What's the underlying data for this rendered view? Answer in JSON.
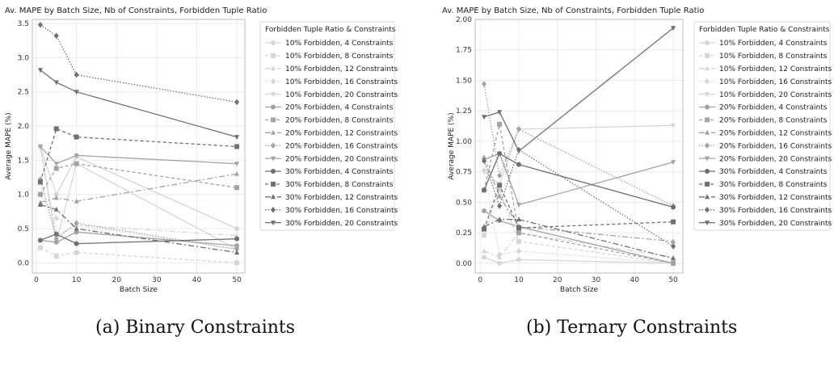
{
  "captions": {
    "a": "(a) Binary Constraints",
    "b": "(b) Ternary Constraints"
  },
  "series_styles": [
    {
      "name": "10% Forbidden, 4 Constraints",
      "color": "#d6d6d6",
      "dash": "",
      "marker": "circle"
    },
    {
      "name": "10% Forbidden, 8 Constraints",
      "color": "#d6d6d6",
      "dash": "4 3",
      "marker": "square"
    },
    {
      "name": "10% Forbidden, 12 Constraints",
      "color": "#d6d6d6",
      "dash": "7 3 2 3",
      "marker": "triangle"
    },
    {
      "name": "10% Forbidden, 16 Constraints",
      "color": "#d6d6d6",
      "dash": "1.5 2",
      "marker": "diamond"
    },
    {
      "name": "10% Forbidden, 20 Constraints",
      "color": "#d6d6d6",
      "dash": "",
      "marker": "tridown"
    },
    {
      "name": "20% Forbidden, 4 Constraints",
      "color": "#a3a3a3",
      "dash": "",
      "marker": "circle"
    },
    {
      "name": "20% Forbidden, 8 Constraints",
      "color": "#a3a3a3",
      "dash": "4 3",
      "marker": "square"
    },
    {
      "name": "20% Forbidden, 12 Constraints",
      "color": "#a3a3a3",
      "dash": "7 3 2 3",
      "marker": "triangle"
    },
    {
      "name": "20% Forbidden, 16 Constraints",
      "color": "#a3a3a3",
      "dash": "1.5 2",
      "marker": "diamond"
    },
    {
      "name": "20% Forbidden, 20 Constraints",
      "color": "#a3a3a3",
      "dash": "",
      "marker": "tridown"
    },
    {
      "name": "30% Forbidden, 4 Constraints",
      "color": "#707070",
      "dash": "",
      "marker": "circle"
    },
    {
      "name": "30% Forbidden, 8 Constraints",
      "color": "#707070",
      "dash": "4 3",
      "marker": "square"
    },
    {
      "name": "30% Forbidden, 12 Constraints",
      "color": "#707070",
      "dash": "7 3 2 3",
      "marker": "triangle"
    },
    {
      "name": "30% Forbidden, 16 Constraints",
      "color": "#707070",
      "dash": "1.5 2",
      "marker": "diamond"
    },
    {
      "name": "30% Forbidden, 20 Constraints",
      "color": "#707070",
      "dash": "",
      "marker": "tridown"
    }
  ],
  "chart_data": [
    {
      "id": "binary",
      "type": "line",
      "title": "Av. MAPE by Batch Size, Nb of Constraints, Forbidden Tuple Ratio",
      "xlabel": "Batch Size",
      "ylabel": "Average MAPE (%)",
      "xlim": [
        -1,
        52
      ],
      "ylim": [
        -0.15,
        3.56
      ],
      "xticks": [
        0,
        10,
        20,
        30,
        40,
        50
      ],
      "yticks": [
        0.0,
        0.5,
        1.0,
        1.5,
        2.0,
        2.5,
        3.0,
        3.5
      ],
      "ytick_labels": [
        "0.0",
        "0.5",
        "1.0",
        "1.5",
        "2.0",
        "2.5",
        "3.0",
        "3.5"
      ],
      "legend_title": "Forbidden Tuple Ratio & Constraints",
      "legend_position": "right",
      "x": [
        1,
        5,
        10,
        50
      ],
      "series": [
        {
          "name": "10% Forbidden, 4 Constraints",
          "values": [
            1.7,
            1.0,
            1.55,
            0.5
          ]
        },
        {
          "name": "10% Forbidden, 8 Constraints",
          "values": [
            0.22,
            0.1,
            0.15,
            0.0
          ]
        },
        {
          "name": "10% Forbidden, 12 Constraints",
          "values": [
            1.7,
            0.4,
            0.55,
            0.4
          ]
        },
        {
          "name": "10% Forbidden, 16 Constraints",
          "values": [
            1.0,
            0.65,
            0.55,
            0.2
          ]
        },
        {
          "name": "10% Forbidden, 20 Constraints",
          "values": [
            1.7,
            0.3,
            1.45,
            0.2
          ]
        },
        {
          "name": "20% Forbidden, 4 Constraints",
          "values": [
            0.33,
            0.3,
            0.45,
            0.25
          ]
        },
        {
          "name": "20% Forbidden, 8 Constraints",
          "values": [
            1.0,
            1.38,
            1.45,
            1.1
          ]
        },
        {
          "name": "20% Forbidden, 12 Constraints",
          "values": [
            0.88,
            0.95,
            0.9,
            1.3
          ]
        },
        {
          "name": "20% Forbidden, 16 Constraints",
          "values": [
            1.22,
            0.35,
            0.58,
            0.2
          ]
        },
        {
          "name": "20% Forbidden, 20 Constraints",
          "values": [
            1.7,
            1.45,
            1.57,
            1.45
          ]
        },
        {
          "name": "30% Forbidden, 4 Constraints",
          "values": [
            0.33,
            0.42,
            0.28,
            0.35
          ]
        },
        {
          "name": "30% Forbidden, 8 Constraints",
          "values": [
            1.18,
            1.96,
            1.84,
            1.7
          ]
        },
        {
          "name": "30% Forbidden, 12 Constraints",
          "values": [
            0.85,
            0.78,
            0.5,
            0.15
          ]
        },
        {
          "name": "30% Forbidden, 16 Constraints",
          "values": [
            3.48,
            3.32,
            2.75,
            2.35
          ]
        },
        {
          "name": "30% Forbidden, 20 Constraints",
          "values": [
            2.82,
            2.64,
            2.5,
            1.84
          ]
        }
      ]
    },
    {
      "id": "ternary",
      "type": "line",
      "title": "Av. MAPE by Batch Size, Nb of Constraints, Forbidden Tuple Ratio",
      "xlabel": "Batch Size",
      "ylabel": "Average MAPE (%)",
      "xlim": [
        -1.3,
        52.5
      ],
      "ylim": [
        -0.08,
        2.0
      ],
      "xticks": [
        0,
        10,
        20,
        30,
        40,
        50
      ],
      "yticks": [
        0.0,
        0.25,
        0.5,
        0.75,
        1.0,
        1.25,
        1.5,
        1.75,
        2.0
      ],
      "ytick_labels": [
        "0.00",
        "0.25",
        "0.50",
        "0.75",
        "1.00",
        "1.25",
        "1.50",
        "1.75",
        "2.00"
      ],
      "legend_title": "Forbidden Tuple Ratio & Constraints",
      "legend_position": "right",
      "x": [
        1,
        5,
        10,
        50
      ],
      "series": [
        {
          "name": "10% Forbidden, 4 Constraints",
          "values": [
            0.05,
            0.0,
            0.03,
            0.0
          ]
        },
        {
          "name": "10% Forbidden, 8 Constraints",
          "values": [
            0.23,
            0.6,
            0.18,
            0.0
          ]
        },
        {
          "name": "10% Forbidden, 12 Constraints",
          "values": [
            0.1,
            0.05,
            0.25,
            0.05
          ]
        },
        {
          "name": "10% Forbidden, 16 Constraints",
          "values": [
            0.76,
            0.07,
            0.1,
            0.0
          ]
        },
        {
          "name": "10% Forbidden, 20 Constraints",
          "values": [
            0.75,
            0.65,
            1.1,
            1.13
          ]
        },
        {
          "name": "20% Forbidden, 4 Constraints",
          "values": [
            0.43,
            0.35,
            0.3,
            0.0
          ]
        },
        {
          "name": "20% Forbidden, 8 Constraints",
          "values": [
            0.6,
            1.14,
            0.25,
            0.0
          ]
        },
        {
          "name": "20% Forbidden, 12 Constraints",
          "values": [
            0.87,
            0.55,
            0.3,
            0.18
          ]
        },
        {
          "name": "20% Forbidden, 16 Constraints",
          "values": [
            1.47,
            0.72,
            1.1,
            0.47
          ]
        },
        {
          "name": "20% Forbidden, 20 Constraints",
          "values": [
            0.85,
            0.9,
            0.48,
            0.83
          ]
        },
        {
          "name": "30% Forbidden, 4 Constraints",
          "values": [
            0.6,
            0.9,
            0.81,
            0.46
          ]
        },
        {
          "name": "30% Forbidden, 8 Constraints",
          "values": [
            0.28,
            0.64,
            0.29,
            0.34
          ]
        },
        {
          "name": "30% Forbidden, 12 Constraints",
          "values": [
            0.3,
            0.36,
            0.36,
            0.04
          ]
        },
        {
          "name": "30% Forbidden, 16 Constraints",
          "values": [
            0.84,
            0.47,
            0.93,
            0.14
          ]
        },
        {
          "name": "30% Forbidden, 20 Constraints",
          "values": [
            1.2,
            1.24,
            0.92,
            1.93
          ]
        }
      ]
    }
  ]
}
